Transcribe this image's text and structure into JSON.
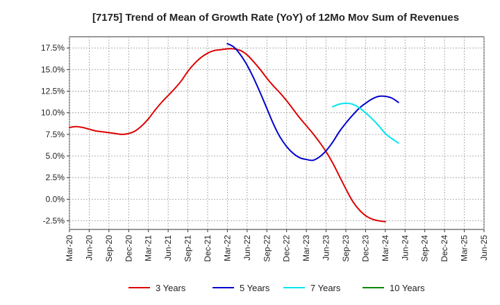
{
  "chart_data": {
    "type": "line",
    "title": "[7175]  Trend of Mean of Growth Rate (YoY) of 12Mo Mov Sum of Revenues",
    "xlabel": "",
    "ylabel": "",
    "x_tick_labels": [
      "Mar-20",
      "Jun-20",
      "Sep-20",
      "Dec-20",
      "Mar-21",
      "Jun-21",
      "Sep-21",
      "Dec-21",
      "Mar-22",
      "Jun-22",
      "Sep-22",
      "Dec-22",
      "Mar-23",
      "Jun-23",
      "Sep-23",
      "Dec-23",
      "Mar-24",
      "Jun-24",
      "Sep-24",
      "Dec-24",
      "Mar-25",
      "Jun-25"
    ],
    "y_ticks": [
      -2.5,
      0,
      2.5,
      5,
      7.5,
      10,
      12.5,
      15,
      17.5
    ],
    "y_tick_labels": [
      "-2.5%",
      "0.0%",
      "2.5%",
      "5.0%",
      "7.5%",
      "10.0%",
      "12.5%",
      "15.0%",
      "17.5%"
    ],
    "ylim": [
      -3.5,
      18.8
    ],
    "xlim": [
      0,
      63
    ],
    "grid": true,
    "legend_position": "bottom",
    "series": [
      {
        "name": "3 Years",
        "label": "3 Years",
        "color": "#dd0000",
        "points": [
          [
            0,
            8.3
          ],
          [
            1,
            8.4
          ],
          [
            2,
            8.3
          ],
          [
            3,
            8.1
          ],
          [
            4,
            7.9
          ],
          [
            5,
            7.8
          ],
          [
            6,
            7.7
          ],
          [
            7,
            7.6
          ],
          [
            8,
            7.5
          ],
          [
            9,
            7.6
          ],
          [
            10,
            7.9
          ],
          [
            11,
            8.5
          ],
          [
            12,
            9.3
          ],
          [
            13,
            10.3
          ],
          [
            14,
            11.2
          ],
          [
            15,
            12.0
          ],
          [
            16,
            12.8
          ],
          [
            17,
            13.7
          ],
          [
            18,
            14.8
          ],
          [
            19,
            15.7
          ],
          [
            20,
            16.4
          ],
          [
            21,
            16.9
          ],
          [
            22,
            17.2
          ],
          [
            23,
            17.3
          ],
          [
            24,
            17.4
          ],
          [
            25,
            17.4
          ],
          [
            26,
            17.2
          ],
          [
            27,
            16.7
          ],
          [
            28,
            15.9
          ],
          [
            29,
            15.0
          ],
          [
            30,
            14.0
          ],
          [
            31,
            13.1
          ],
          [
            32,
            12.3
          ],
          [
            33,
            11.4
          ],
          [
            34,
            10.4
          ],
          [
            35,
            9.4
          ],
          [
            36,
            8.5
          ],
          [
            37,
            7.6
          ],
          [
            38,
            6.6
          ],
          [
            39,
            5.5
          ],
          [
            40,
            4.2
          ],
          [
            41,
            2.7
          ],
          [
            42,
            1.2
          ],
          [
            43,
            -0.2
          ],
          [
            44,
            -1.2
          ],
          [
            45,
            -1.9
          ],
          [
            46,
            -2.3
          ],
          [
            47,
            -2.5
          ],
          [
            48,
            -2.6
          ]
        ]
      },
      {
        "name": "5 Years",
        "label": "5 Years",
        "color": "#0000cc",
        "points": [
          [
            24,
            18.0
          ],
          [
            25,
            17.6
          ],
          [
            26,
            16.7
          ],
          [
            27,
            15.5
          ],
          [
            28,
            14.0
          ],
          [
            29,
            12.3
          ],
          [
            30,
            10.5
          ],
          [
            31,
            8.7
          ],
          [
            32,
            7.2
          ],
          [
            33,
            6.1
          ],
          [
            34,
            5.3
          ],
          [
            35,
            4.8
          ],
          [
            36,
            4.6
          ],
          [
            37,
            4.5
          ],
          [
            38,
            4.9
          ],
          [
            39,
            5.6
          ],
          [
            40,
            6.6
          ],
          [
            41,
            7.8
          ],
          [
            42,
            8.8
          ],
          [
            43,
            9.7
          ],
          [
            44,
            10.5
          ],
          [
            45,
            11.1
          ],
          [
            46,
            11.6
          ],
          [
            47,
            11.9
          ],
          [
            48,
            11.9
          ],
          [
            49,
            11.7
          ],
          [
            50,
            11.2
          ]
        ]
      },
      {
        "name": "7 Years",
        "label": "7 Years",
        "color": "#00e5ee",
        "points": [
          [
            40,
            10.7
          ],
          [
            41,
            11.0
          ],
          [
            42,
            11.1
          ],
          [
            43,
            11.0
          ],
          [
            44,
            10.6
          ],
          [
            45,
            10.0
          ],
          [
            46,
            9.3
          ],
          [
            47,
            8.5
          ],
          [
            48,
            7.6
          ],
          [
            49,
            7.0
          ],
          [
            50,
            6.5
          ]
        ]
      },
      {
        "name": "10 Years",
        "label": "10 Years",
        "color": "#008800",
        "points": []
      }
    ]
  }
}
